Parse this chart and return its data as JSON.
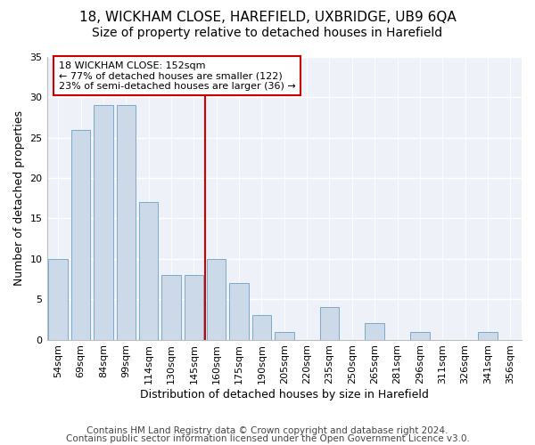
{
  "title1": "18, WICKHAM CLOSE, HAREFIELD, UXBRIDGE, UB9 6QA",
  "title2": "Size of property relative to detached houses in Harefield",
  "xlabel": "Distribution of detached houses by size in Harefield",
  "ylabel": "Number of detached properties",
  "categories": [
    "54sqm",
    "69sqm",
    "84sqm",
    "99sqm",
    "114sqm",
    "130sqm",
    "145sqm",
    "160sqm",
    "175sqm",
    "190sqm",
    "205sqm",
    "220sqm",
    "235sqm",
    "250sqm",
    "265sqm",
    "281sqm",
    "296sqm",
    "311sqm",
    "326sqm",
    "341sqm",
    "356sqm"
  ],
  "values": [
    10,
    26,
    29,
    29,
    17,
    8,
    8,
    10,
    7,
    3,
    1,
    0,
    4,
    0,
    2,
    0,
    1,
    0,
    0,
    1,
    0
  ],
  "bar_color": "#ccd9e8",
  "bar_edge_color": "#7aaac8",
  "annotation_title": "18 WICKHAM CLOSE: 152sqm",
  "annotation_line1": "← 77% of detached houses are smaller (122)",
  "annotation_line2": "23% of semi-detached houses are larger (36) →",
  "annotation_box_color": "#ffffff",
  "annotation_box_edge": "#cc0000",
  "vline_color": "#cc0000",
  "vline_x": 6.5,
  "ylim": [
    0,
    35
  ],
  "yticks": [
    0,
    5,
    10,
    15,
    20,
    25,
    30,
    35
  ],
  "footer1": "Contains HM Land Registry data © Crown copyright and database right 2024.",
  "footer2": "Contains public sector information licensed under the Open Government Licence v3.0.",
  "bg_color": "#ffffff",
  "plot_bg_color": "#eef2f8",
  "grid_color": "#ffffff",
  "title1_fontsize": 11,
  "title2_fontsize": 10,
  "xlabel_fontsize": 9,
  "ylabel_fontsize": 9,
  "tick_fontsize": 8,
  "footer_fontsize": 7.5,
  "ann_fontsize": 8
}
